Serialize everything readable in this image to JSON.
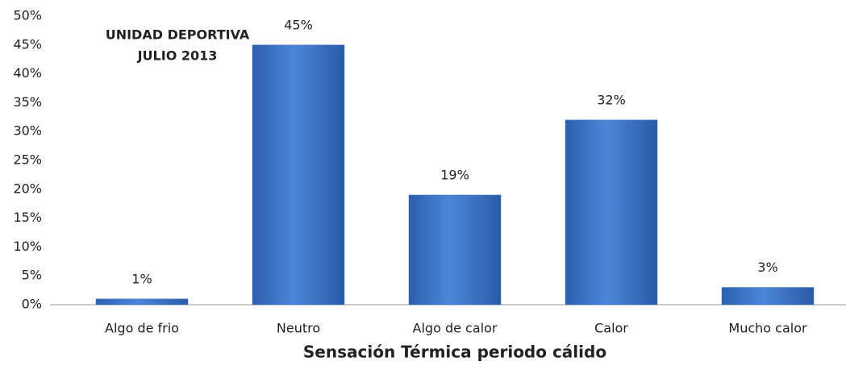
{
  "chart_data": {
    "type": "bar",
    "title": [
      "UNIDAD DEPORTIVA",
      "JULIO 2013"
    ],
    "x_label": "Sensación Térmica periodo cálido",
    "categories": [
      "Algo de frio",
      "Neutro",
      "Algo de calor",
      "Calor",
      "Mucho calor"
    ],
    "values": [
      1,
      45,
      19,
      32,
      3
    ],
    "value_labels": [
      "1%",
      "45%",
      "19%",
      "32%",
      "3%"
    ],
    "color": "#3f76c9",
    "ylim": [
      0,
      50
    ],
    "yticks": [
      {
        "value": 0,
        "label": "0%"
      },
      {
        "value": 5,
        "label": "5%"
      },
      {
        "value": 10,
        "label": "10%"
      },
      {
        "value": 15,
        "label": "15%"
      },
      {
        "value": 20,
        "label": "20%"
      },
      {
        "value": 25,
        "label": "25%"
      },
      {
        "value": 30,
        "label": "30%"
      },
      {
        "value": 35,
        "label": "35%"
      },
      {
        "value": 40,
        "label": "40%"
      },
      {
        "value": 45,
        "label": "45%"
      },
      {
        "value": 50,
        "label": "50%"
      }
    ],
    "grid": false
  }
}
